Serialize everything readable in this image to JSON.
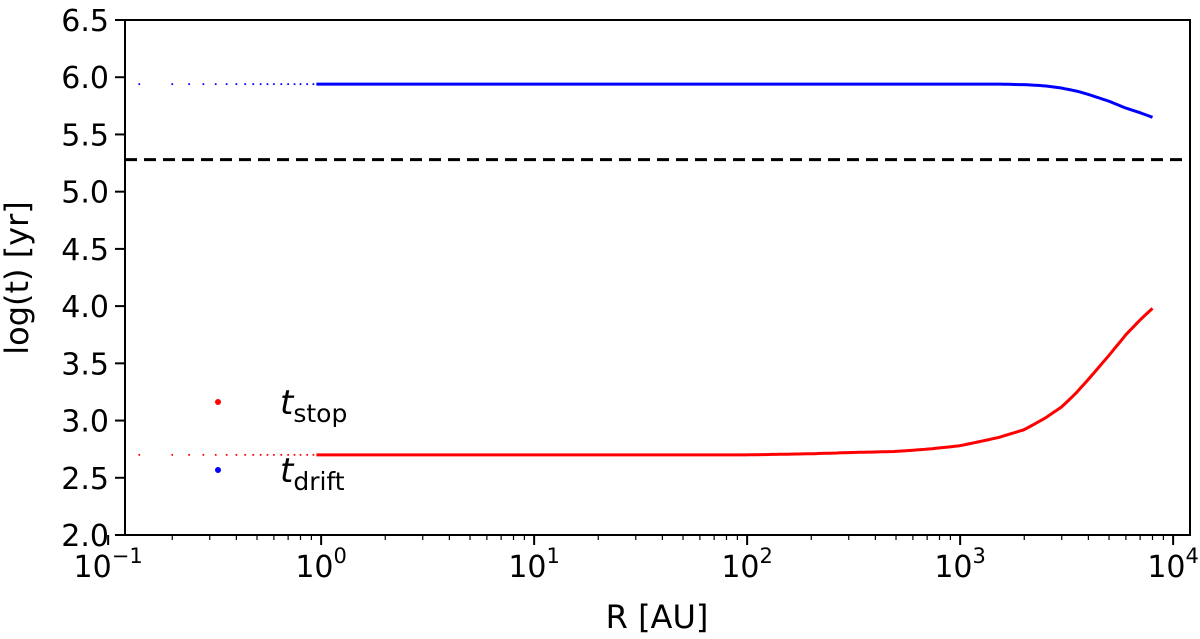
{
  "chart_data": {
    "type": "scatter",
    "xlabel": "R [AU]",
    "ylabel": "log(t) [yr]",
    "xscale": "log",
    "xlim": [
      0.12,
      12000
    ],
    "ylim": [
      2.0,
      6.5
    ],
    "x_ticks": [
      {
        "value": 0.1,
        "base": "10",
        "exp": "−1"
      },
      {
        "value": 1,
        "base": "10",
        "exp": "0"
      },
      {
        "value": 10,
        "base": "10",
        "exp": "1"
      },
      {
        "value": 100,
        "base": "10",
        "exp": "2"
      },
      {
        "value": 1000,
        "base": "10",
        "exp": "3"
      },
      {
        "value": 10000,
        "base": "10",
        "exp": "4"
      }
    ],
    "y_ticks": [
      "2.0",
      "2.5",
      "3.0",
      "3.5",
      "4.0",
      "4.5",
      "5.0",
      "5.5",
      "6.0",
      "6.5"
    ],
    "grid": false,
    "legend_position": "lower-left",
    "reference_line": {
      "y": 5.28,
      "style": "dashed",
      "color": "#000000"
    },
    "series": [
      {
        "name": "t_stop",
        "label_main": "t",
        "label_sub": "stop",
        "color": "#ff0000",
        "x": [
          0.14,
          0.2,
          0.3,
          0.5,
          0.7,
          1,
          2,
          5,
          10,
          20,
          50,
          100,
          200,
          300,
          500,
          700,
          1000,
          1500,
          2000,
          2500,
          3000,
          3500,
          4000,
          5000,
          6000,
          7000,
          8000
        ],
        "y": [
          2.7,
          2.7,
          2.7,
          2.7,
          2.7,
          2.7,
          2.7,
          2.7,
          2.7,
          2.7,
          2.7,
          2.7,
          2.71,
          2.72,
          2.73,
          2.75,
          2.78,
          2.85,
          2.92,
          3.02,
          3.12,
          3.24,
          3.36,
          3.57,
          3.75,
          3.88,
          3.98
        ]
      },
      {
        "name": "t_drift",
        "label_main": "t",
        "label_sub": "drift",
        "color": "#0000ff",
        "x": [
          0.14,
          0.2,
          0.3,
          0.5,
          0.7,
          1,
          2,
          5,
          10,
          20,
          50,
          100,
          200,
          500,
          1000,
          1500,
          2000,
          2500,
          3000,
          3500,
          4000,
          5000,
          6000,
          7000,
          8000
        ],
        "y": [
          5.94,
          5.94,
          5.94,
          5.94,
          5.94,
          5.94,
          5.94,
          5.94,
          5.94,
          5.94,
          5.94,
          5.94,
          5.94,
          5.94,
          5.94,
          5.94,
          5.935,
          5.925,
          5.905,
          5.88,
          5.85,
          5.79,
          5.73,
          5.69,
          5.65
        ]
      }
    ]
  }
}
